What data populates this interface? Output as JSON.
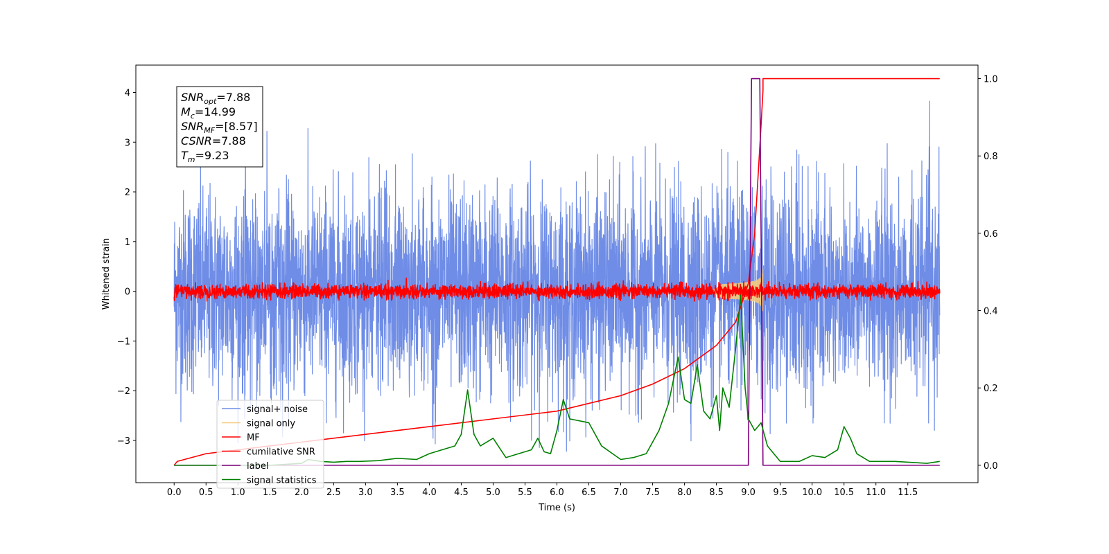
{
  "chart_data": {
    "type": "line",
    "xlabel": "Time (s)",
    "ylabel": "Whitened strain",
    "xlim": [
      -0.6,
      12.6
    ],
    "ylim": [
      -3.85,
      4.55
    ],
    "y2lim": [
      -0.045,
      1.035
    ],
    "x_ticks": [
      "0.0",
      "0.5",
      "1.0",
      "1.5",
      "2.0",
      "2.5",
      "3.0",
      "3.5",
      "4.0",
      "4.5",
      "5.0",
      "5.5",
      "6.0",
      "6.5",
      "7.0",
      "7.5",
      "8.0",
      "8.5",
      "9.0",
      "9.5",
      "10.0",
      "10.5",
      "11.0",
      "11.5"
    ],
    "y_ticks": [
      "−3",
      "−2",
      "−1",
      "0",
      "1",
      "2",
      "3",
      "4"
    ],
    "y2_ticks": [
      "0.0",
      "0.2",
      "0.4",
      "0.6",
      "0.8",
      "1.0"
    ],
    "grid": false,
    "legend_placement": "bottom-left",
    "annotation": [
      {
        "base": "SNR",
        "sub": "opt",
        "value": "=7.88"
      },
      {
        "base": "M",
        "sub": "c",
        "value": "=14.99"
      },
      {
        "base": "SNR",
        "sub": "MF",
        "value": "=[8.57]"
      },
      {
        "base": "CSNR",
        "sub": "",
        "value": "=7.88"
      },
      {
        "base": "T",
        "sub": "m",
        "value": "=9.23"
      }
    ],
    "series": [
      {
        "name": "signal+ noise",
        "color": "#6f8de6",
        "axis": "left",
        "kind": "noise",
        "t_range": [
          0,
          12
        ],
        "std": 1.0,
        "max": 4.15,
        "min": -3.3
      },
      {
        "name": "signal only",
        "color": "#f5c97a",
        "axis": "left",
        "kind": "chirp",
        "t_range": [
          8.4,
          9.23
        ],
        "peak_amplitude": 0.5
      },
      {
        "name": "MF",
        "color": "#ff0000",
        "axis": "left",
        "kind": "noise",
        "t_range": [
          0,
          12
        ],
        "std": 0.07,
        "max": 0.35,
        "min": -0.2
      },
      {
        "name": "cumilative SNR",
        "color": "#ff0000",
        "axis": "right",
        "x": [
          0.0,
          0.05,
          0.5,
          1.0,
          2.0,
          3.0,
          4.0,
          5.0,
          6.0,
          7.0,
          7.5,
          8.0,
          8.5,
          8.8,
          9.0,
          9.1,
          9.2,
          9.23,
          9.23,
          12.0
        ],
        "y": [
          0.0,
          0.01,
          0.03,
          0.04,
          0.06,
          0.08,
          0.1,
          0.12,
          0.14,
          0.18,
          0.21,
          0.25,
          0.31,
          0.37,
          0.47,
          0.6,
          0.88,
          0.97,
          1.0,
          1.0
        ]
      },
      {
        "name": "label",
        "color": "#800080",
        "axis": "right",
        "x": [
          0.0,
          9.0,
          9.05,
          9.18,
          9.23,
          12.0
        ],
        "y": [
          0.0,
          0.0,
          1.0,
          1.0,
          0.0,
          0.0
        ]
      },
      {
        "name": "signal statistics",
        "color": "#008000",
        "axis": "right",
        "x": [
          0.0,
          1.0,
          1.5,
          2.0,
          2.1,
          2.3,
          2.5,
          2.7,
          2.9,
          3.2,
          3.5,
          3.8,
          4.0,
          4.2,
          4.4,
          4.5,
          4.6,
          4.7,
          4.8,
          5.0,
          5.2,
          5.4,
          5.6,
          5.7,
          5.8,
          5.9,
          6.0,
          6.1,
          6.2,
          6.5,
          6.7,
          7.0,
          7.2,
          7.4,
          7.6,
          7.75,
          7.9,
          8.0,
          8.1,
          8.2,
          8.3,
          8.4,
          8.5,
          8.55,
          8.6,
          8.7,
          8.8,
          8.88,
          8.95,
          9.0,
          9.1,
          9.2,
          9.3,
          9.5,
          9.8,
          10.0,
          10.2,
          10.4,
          10.5,
          10.6,
          10.7,
          10.9,
          11.3,
          11.8,
          12.0
        ],
        "y": [
          0.0,
          0.0,
          0.0,
          0.005,
          0.015,
          0.01,
          0.008,
          0.01,
          0.01,
          0.012,
          0.018,
          0.015,
          0.03,
          0.04,
          0.05,
          0.08,
          0.195,
          0.08,
          0.05,
          0.07,
          0.02,
          0.03,
          0.04,
          0.07,
          0.035,
          0.03,
          0.09,
          0.17,
          0.12,
          0.11,
          0.05,
          0.015,
          0.02,
          0.03,
          0.09,
          0.16,
          0.28,
          0.17,
          0.16,
          0.26,
          0.14,
          0.12,
          0.18,
          0.09,
          0.2,
          0.15,
          0.3,
          0.44,
          0.2,
          0.12,
          0.09,
          0.11,
          0.05,
          0.01,
          0.01,
          0.025,
          0.02,
          0.04,
          0.1,
          0.07,
          0.03,
          0.01,
          0.01,
          0.005,
          0.01
        ]
      }
    ]
  }
}
